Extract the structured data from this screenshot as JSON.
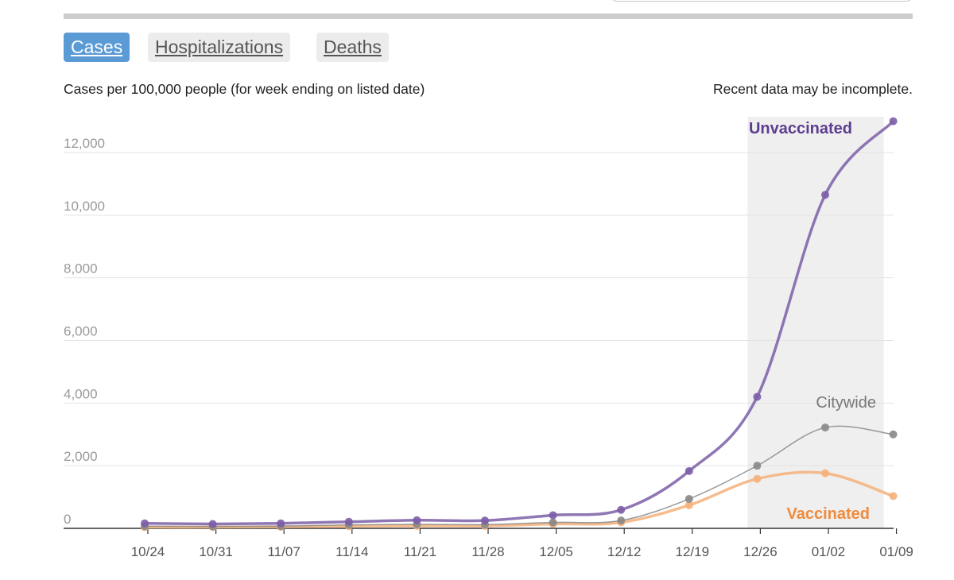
{
  "tabs": [
    {
      "label": "Cases",
      "active": true
    },
    {
      "label": "Hospitalizations",
      "active": false
    },
    {
      "label": "Deaths",
      "active": false
    }
  ],
  "subtitle": "Cases per 100,000 people (for week ending on listed date)",
  "note": "Recent data may be incomplete.",
  "chart_data": {
    "type": "line",
    "x": [
      "10/24",
      "10/31",
      "11/07",
      "11/14",
      "11/21",
      "11/28",
      "12/05",
      "12/12",
      "12/19",
      "12/26",
      "01/02",
      "01/09"
    ],
    "x_tick_labels": [
      "10/24",
      "10/31",
      "11/07",
      "11/14",
      "11/21",
      "11/28",
      "12/05",
      "12/12",
      "12/19",
      "12/26",
      "01/02",
      "01/09"
    ],
    "y_tick_labels": [
      "0",
      "2,000",
      "4,000",
      "6,000",
      "8,000",
      "10,000",
      "12,000"
    ],
    "ylim": [
      0,
      13000
    ],
    "grid": true,
    "incomplete_region": [
      "12/26",
      "01/09"
    ],
    "series": [
      {
        "name": "Unvaccinated",
        "color": "#7b5ea7",
        "label_color": "#5c3d8f",
        "values": [
          160,
          140,
          160,
          210,
          260,
          250,
          420,
          590,
          1830,
          4200,
          10650,
          13000
        ]
      },
      {
        "name": "Citywide",
        "color": "#888888",
        "label_color": "#777777",
        "values": [
          70,
          60,
          70,
          110,
          130,
          120,
          190,
          250,
          940,
          2000,
          3220,
          3000
        ]
      },
      {
        "name": "Vaccinated",
        "color": "#f5b07a",
        "label_color": "#f08a3c",
        "values": [
          40,
          40,
          50,
          70,
          80,
          80,
          140,
          190,
          740,
          1580,
          1760,
          1030
        ]
      }
    ]
  }
}
